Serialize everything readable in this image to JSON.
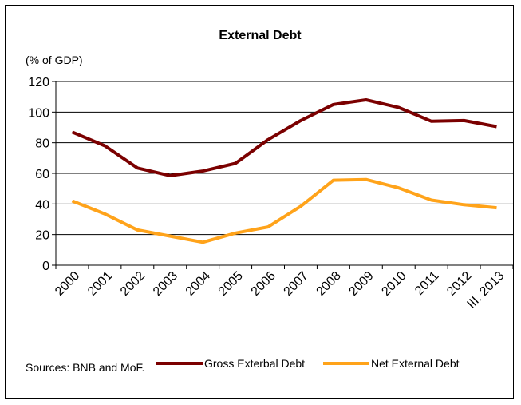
{
  "chart_data": {
    "type": "line",
    "title": "External Debt",
    "ylabel": "(% of GDP)",
    "xlabel": "",
    "categories": [
      "2000",
      "2001",
      "2002",
      "2003",
      "2004",
      "2005",
      "2006",
      "2007",
      "2008",
      "2009",
      "2010",
      "2011",
      "2012",
      "III. 2013"
    ],
    "ylim": [
      0,
      120
    ],
    "yticks": [
      0,
      20,
      40,
      60,
      80,
      100,
      120
    ],
    "grid": "horizontal",
    "legend_position": "bottom",
    "series": [
      {
        "name": "Gross Exterbal Debt",
        "color": "#7b0000",
        "values": [
          87,
          78,
          63.5,
          58.5,
          61.5,
          66.5,
          82,
          94.5,
          105,
          108,
          103,
          94,
          94.5,
          90.5
        ]
      },
      {
        "name": "Net External Debt",
        "color": "#ffa31a",
        "values": [
          42,
          33.5,
          23,
          19,
          15,
          21,
          25,
          38.5,
          55.5,
          56,
          50.5,
          42.5,
          39.5,
          37.5
        ]
      }
    ],
    "source": "Sources: BNB and MoF."
  }
}
